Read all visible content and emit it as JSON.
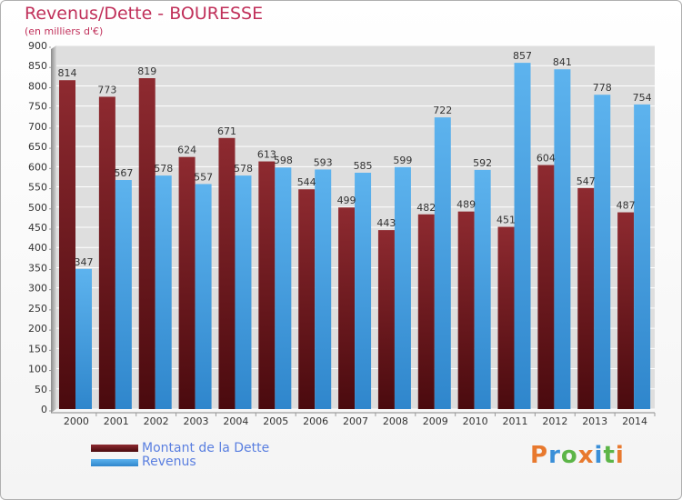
{
  "header": {
    "title": "Revenus/Dette - BOURESSE",
    "subtitle": "(en milliers d'€)"
  },
  "legend": {
    "items": [
      {
        "label": "Montant de la Dette",
        "color": "#7a1e24"
      },
      {
        "label": "Revenus",
        "color": "#4aa6e6"
      }
    ]
  },
  "logo": {
    "text": "Proxiti",
    "letter_colors": [
      "#e8792e",
      "#3a8fd8",
      "#5cb547",
      "#e8792e",
      "#3a8fd8",
      "#5cb547",
      "#e8792e"
    ]
  },
  "chart_data": {
    "type": "bar",
    "title": "Revenus/Dette - BOURESSE",
    "subtitle": "(en milliers d'€)",
    "categories": [
      "2000",
      "2001",
      "2002",
      "2003",
      "2004",
      "2005",
      "2006",
      "2007",
      "2008",
      "2009",
      "2010",
      "2011",
      "2012",
      "2013",
      "2014"
    ],
    "series": [
      {
        "name": "Montant de la Dette",
        "color": "#7a1e24",
        "values": [
          814,
          773,
          819,
          624,
          671,
          613,
          544,
          499,
          443,
          482,
          489,
          451,
          604,
          547,
          487
        ]
      },
      {
        "name": "Revenus",
        "color": "#4aa6e6",
        "values": [
          347,
          567,
          578,
          557,
          578,
          598,
          593,
          585,
          599,
          722,
          592,
          857,
          841,
          778,
          754
        ]
      }
    ],
    "ylim": [
      0,
      900
    ],
    "ytick_step": 50,
    "grid": true,
    "legend_position": "bottom-left"
  }
}
